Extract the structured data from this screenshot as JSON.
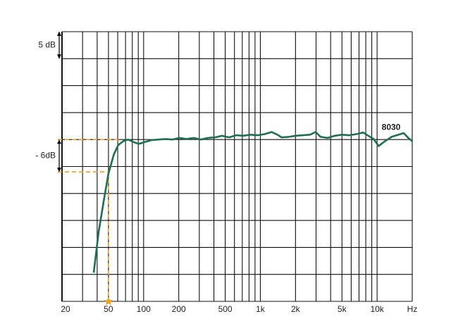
{
  "chart_data": {
    "type": "line",
    "x": [
      37.4,
      41.2,
      46.2,
      50,
      55.7,
      60.6,
      67,
      73.7,
      82.7,
      91.3,
      101,
      117,
      134,
      154,
      177,
      202,
      233,
      268,
      308,
      356,
      409,
      470,
      540,
      620,
      714,
      821,
      945,
      1086,
      1250,
      1400,
      1520,
      1750,
      2010,
      2310,
      2660,
      2980,
      3280,
      3780,
      4350,
      5000,
      5750,
      6620,
      7610,
      8400,
      9330,
      10300,
      11500,
      13300,
      15300,
      16900,
      18300,
      20000
    ],
    "series": [
      {
        "name": "8030",
        "color": "#1f6e52",
        "values": [
          -24.7,
          -17.1,
          -10.6,
          -6.3,
          -2.7,
          -1.0,
          -0.3,
          0,
          -0.5,
          -0.8,
          -0.5,
          -0.1,
          0,
          0.1,
          0,
          0.3,
          0.1,
          0.3,
          0,
          0.3,
          0.4,
          0.7,
          0.4,
          0.8,
          0.7,
          0.9,
          0.8,
          1.0,
          1.4,
          0.9,
          0.4,
          0.5,
          0.7,
          0.8,
          0.9,
          1.4,
          0.5,
          0.3,
          0.7,
          0.9,
          0.8,
          1.0,
          1.3,
          0.7,
          0.1,
          -1.2,
          -0.4,
          0.5,
          0.9,
          1.2,
          0.4,
          -0.3
        ]
      }
    ],
    "log_x": true,
    "xlim": [
      20,
      20000
    ],
    "xticks": [
      20,
      50,
      100,
      200,
      500,
      {
        "value": 1000,
        "label": "1k"
      },
      {
        "value": 2000,
        "label": "2k"
      },
      {
        "value": 5000,
        "label": "5k"
      },
      {
        "value": 10000,
        "label": "10k"
      },
      {
        "value": 20000,
        "label": "Hz"
      }
    ],
    "xgrid": [
      20,
      30,
      40,
      50,
      60,
      70,
      80,
      90,
      100,
      200,
      300,
      400,
      500,
      600,
      700,
      800,
      900,
      1000,
      2000,
      3000,
      4000,
      5000,
      6000,
      7000,
      8000,
      9000,
      10000,
      20000
    ],
    "ylim": [
      -30,
      20
    ],
    "yticks": [
      -30,
      -25,
      -20,
      -15,
      -10,
      -5,
      0,
      5,
      10,
      15,
      20
    ],
    "grid": true,
    "annotations": [
      {
        "label": "5 dB",
        "from": 20,
        "to": 15,
        "color": "#000000"
      },
      {
        "label": "- 6dB",
        "from": 0,
        "to": -6,
        "color": "#000000"
      }
    ],
    "cutoff": {
      "x": 50,
      "levels": [
        0,
        -6
      ],
      "color": "#f0a020"
    }
  }
}
